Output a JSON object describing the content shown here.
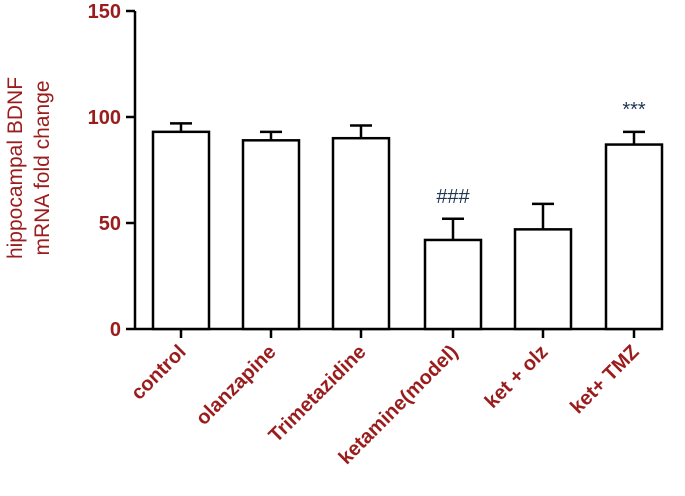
{
  "chart_data": {
    "type": "bar",
    "title": "",
    "ylabel_lines": [
      "hippocampal BDNF",
      "mRNA fold change"
    ],
    "ylim": [
      0,
      150
    ],
    "yticks": [
      0,
      50,
      100,
      150
    ],
    "categories": [
      "control",
      "olanzapine",
      "Trimetazidine",
      "ketamine(model)",
      "ket + olz",
      "ket+ TMZ"
    ],
    "values": [
      93,
      89,
      90,
      42,
      47,
      87
    ],
    "errors": [
      4,
      4,
      6,
      10,
      12,
      6
    ],
    "annotations": [
      "",
      "",
      "",
      "###",
      "",
      "***"
    ],
    "colors": {
      "bar_fill": "#ffffff",
      "bar_stroke": "#000000",
      "text": "#9b1c1c",
      "annotation": "#1f3552"
    }
  }
}
